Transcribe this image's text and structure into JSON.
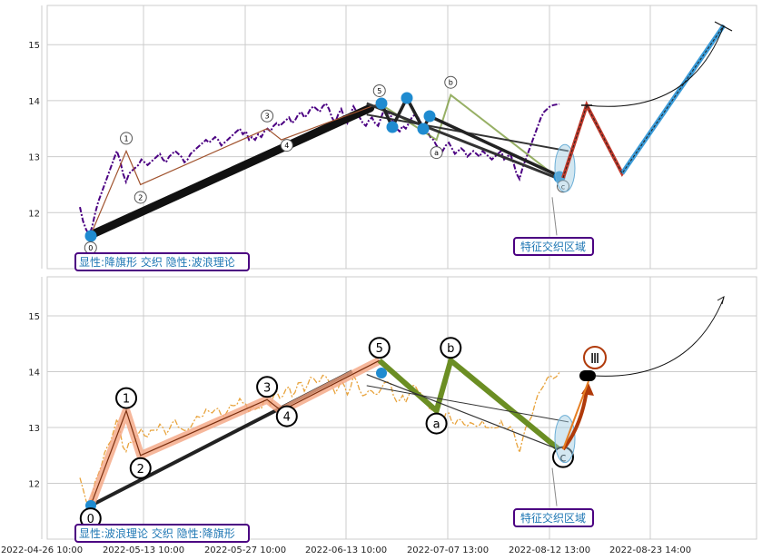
{
  "chart_data": [
    {
      "type": "line",
      "panel": "top",
      "ylim": [
        11,
        15.7
      ],
      "yticks": [
        12,
        13,
        14,
        15
      ],
      "grid": true,
      "price_series": {
        "name": "",
        "color": "#4b0082",
        "style": "dash-dot",
        "x": [
          0,
          1,
          2,
          3,
          4,
          5,
          6,
          7,
          8,
          9,
          10,
          11,
          12,
          13,
          14,
          15,
          16,
          17,
          18,
          19,
          20,
          21,
          22,
          23,
          24,
          25,
          26,
          27,
          28,
          29,
          30,
          31,
          32,
          33,
          34,
          35,
          36,
          37,
          38,
          39,
          40,
          41,
          42,
          43,
          44,
          45,
          46,
          47,
          48,
          49,
          50,
          51,
          52,
          53,
          54,
          55,
          56,
          57,
          58,
          59,
          60,
          61,
          62,
          63,
          64,
          65,
          66,
          67,
          68,
          69,
          70,
          71,
          72,
          73,
          74,
          75,
          76,
          77,
          78,
          79,
          80,
          81,
          82,
          83,
          84,
          85,
          86,
          87,
          88,
          89,
          90,
          91,
          92,
          93,
          94,
          95,
          96,
          97,
          98,
          99,
          100,
          101,
          102,
          103,
          104,
          105,
          106,
          107,
          108,
          109,
          110,
          111,
          112,
          113,
          114,
          115,
          116,
          117,
          118,
          119,
          120,
          121,
          122,
          123,
          124,
          125,
          126,
          127,
          128,
          129,
          130,
          131,
          132,
          133,
          134,
          135,
          136,
          137,
          138,
          139,
          140,
          141,
          142,
          143,
          144,
          145,
          146,
          147,
          148,
          149,
          150,
          151,
          152,
          153,
          154,
          155,
          156
        ],
        "y": [
          12.1,
          11.85,
          11.7,
          11.6,
          11.75,
          12.0,
          12.2,
          12.35,
          12.5,
          12.65,
          12.8,
          12.95,
          13.1,
          12.95,
          12.7,
          12.55,
          12.7,
          12.75,
          12.8,
          12.85,
          12.95,
          12.9,
          12.85,
          12.9,
          12.95,
          13.0,
          13.05,
          12.95,
          12.9,
          13.0,
          13.05,
          13.1,
          13.05,
          13.0,
          12.9,
          12.95,
          13.05,
          13.1,
          13.15,
          13.2,
          13.25,
          13.3,
          13.25,
          13.3,
          13.35,
          13.3,
          13.2,
          13.25,
          13.3,
          13.35,
          13.4,
          13.45,
          13.5,
          13.4,
          13.45,
          13.3,
          13.35,
          13.3,
          13.4,
          13.35,
          13.45,
          13.5,
          13.45,
          13.55,
          13.6,
          13.55,
          13.6,
          13.65,
          13.7,
          13.6,
          13.65,
          13.75,
          13.8,
          13.7,
          13.75,
          13.85,
          13.9,
          13.85,
          13.8,
          13.9,
          13.95,
          13.85,
          13.7,
          13.6,
          13.75,
          13.85,
          13.7,
          13.6,
          13.75,
          13.9,
          13.8,
          13.7,
          13.6,
          13.55,
          13.65,
          13.7,
          13.6,
          13.55,
          13.7,
          13.85,
          13.8,
          13.75,
          13.6,
          13.5,
          13.45,
          13.55,
          13.5,
          13.6,
          13.7,
          13.75,
          13.7,
          13.6,
          13.5,
          13.45,
          13.35,
          13.3,
          13.2,
          13.15,
          13.1,
          13.2,
          13.25,
          13.15,
          13.05,
          13.1,
          13.15,
          13.1,
          13.0,
          13.05,
          13.1,
          13.05,
          13.0,
          13.1,
          13.05,
          13.0,
          12.95,
          13.0,
          13.05,
          13.1,
          12.95,
          13.0,
          13.05,
          12.9,
          12.7,
          12.6,
          12.8,
          12.95,
          13.1,
          13.25,
          13.4,
          13.55,
          13.7,
          13.8,
          13.85,
          13.9,
          13.92,
          13.93,
          13.94
        ]
      },
      "wave_points": [
        {
          "label": "0",
          "x": 6,
          "y": 11.6
        },
        {
          "label": "1",
          "x": 26,
          "y": 13.1
        },
        {
          "label": "2",
          "x": 34,
          "y": 12.5
        },
        {
          "label": "3",
          "x": 105,
          "y": 13.5
        },
        {
          "label": "4",
          "x": 113,
          "y": 13.3
        },
        {
          "label": "5",
          "x": 168,
          "y": 13.95
        },
        {
          "label": "a",
          "x": 200,
          "y": 13.3
        },
        {
          "label": "b",
          "x": 208,
          "y": 14.1
        },
        {
          "label": "c",
          "x": 269,
          "y": 12.6
        }
      ],
      "label_box": "显性:降旗形 交织 隐性:波浪理论",
      "zone_label": "特征交织区域"
    },
    {
      "type": "line",
      "panel": "bottom",
      "ylim": [
        11,
        15.7
      ],
      "yticks": [
        12,
        13,
        14,
        15
      ],
      "grid": true,
      "price_series": {
        "name": "",
        "color": "#e8a33c",
        "style": "dash-dot"
      },
      "wave_points": [
        {
          "label": "0",
          "x": 6,
          "y": 11.6
        },
        {
          "label": "1",
          "x": 26,
          "y": 13.3
        },
        {
          "label": "2",
          "x": 34,
          "y": 12.5
        },
        {
          "label": "3",
          "x": 105,
          "y": 13.5
        },
        {
          "label": "4",
          "x": 113,
          "y": 13.3
        },
        {
          "label": "5",
          "x": 168,
          "y": 14.2
        },
        {
          "label": "a",
          "x": 200,
          "y": 13.3
        },
        {
          "label": "b",
          "x": 208,
          "y": 14.2
        },
        {
          "label": "c",
          "x": 269,
          "y": 12.6
        }
      ],
      "target_label": "Ⅲ",
      "label_box": "显性:波浪理论 交织 隐性:降旗形",
      "zone_label": "特征交织区域"
    }
  ],
  "x_ticks": [
    "2022-04-26 10:00",
    "2022-05-13 10:00",
    "2022-05-27 10:00",
    "2022-06-13 10:00",
    "2022-07-07 13:00",
    "2022-08-12 13:00",
    "2022-08-23 14:00"
  ],
  "colors": {
    "grid": "#cccccc",
    "axes_bg": "#ffffff",
    "thick_line": "#222222",
    "orange_zig": "#e8a33c",
    "green_zig": "#6b8e23",
    "blue_dot": "#1f8bd0",
    "forecast_blue": "#3a9bd8",
    "forecast_red": "#c0392b",
    "label_box_border": "#4b0082",
    "label_text": "#1f77b4",
    "brown_arrow": "#b03a0a"
  }
}
